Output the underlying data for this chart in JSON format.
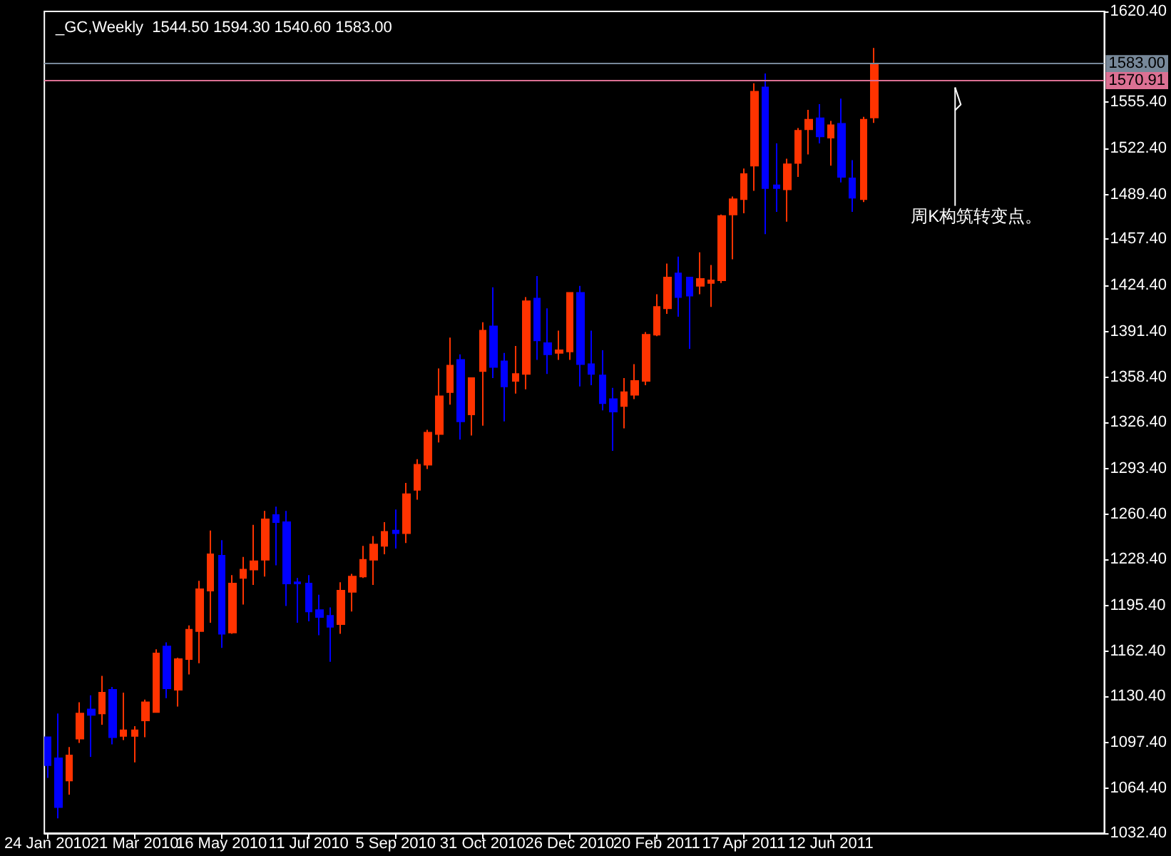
{
  "chart_data": {
    "type": "candlestick",
    "title": "_GC,Weekly  1544.50 1594.30 1540.60 1583.00",
    "annotations": [
      {
        "text": "周K构筑转变点。",
        "x": "2011-08-31",
        "y": 1566
      }
    ],
    "x": [
      "2010-01-24",
      "2010-01-31",
      "2010-02-07",
      "2010-02-14",
      "2010-02-21",
      "2010-02-28",
      "2010-03-07",
      "2010-03-14",
      "2010-03-21",
      "2010-03-28",
      "2010-04-04",
      "2010-04-11",
      "2010-04-18",
      "2010-04-25",
      "2010-05-02",
      "2010-05-09",
      "2010-05-16",
      "2010-05-23",
      "2010-05-30",
      "2010-06-06",
      "2010-06-13",
      "2010-06-20",
      "2010-06-27",
      "2010-07-04",
      "2010-07-11",
      "2010-07-18",
      "2010-07-25",
      "2010-08-01",
      "2010-08-08",
      "2010-08-15",
      "2010-08-22",
      "2010-08-29",
      "2010-09-05",
      "2010-09-12",
      "2010-09-19",
      "2010-09-26",
      "2010-10-03",
      "2010-10-10",
      "2010-10-17",
      "2010-10-24",
      "2010-10-31",
      "2010-11-07",
      "2010-11-14",
      "2010-11-21",
      "2010-11-28",
      "2010-12-05",
      "2010-12-12",
      "2010-12-19",
      "2010-12-26",
      "2011-01-02",
      "2011-01-09",
      "2011-01-16",
      "2011-01-23",
      "2011-01-30",
      "2011-02-06",
      "2011-02-13",
      "2011-02-20",
      "2011-02-27",
      "2011-03-06",
      "2011-03-13",
      "2011-03-20",
      "2011-03-27",
      "2011-04-03",
      "2011-04-10",
      "2011-04-17",
      "2011-04-24",
      "2011-05-01",
      "2011-05-08",
      "2011-05-15",
      "2011-05-22",
      "2011-05-29",
      "2011-06-05",
      "2011-06-12",
      "2011-06-19",
      "2011-06-26",
      "2011-07-03",
      "2011-07-10"
    ],
    "ohlc": [
      [
        1101,
        1101,
        1072,
        1081
      ],
      [
        1086,
        1118,
        1043,
        1051
      ],
      [
        1070,
        1094,
        1060,
        1088
      ],
      [
        1100,
        1126,
        1097,
        1118
      ],
      [
        1121,
        1131,
        1087,
        1117
      ],
      [
        1118,
        1145,
        1110,
        1133
      ],
      [
        1135,
        1137,
        1096,
        1101
      ],
      [
        1102,
        1133,
        1099,
        1106
      ],
      [
        1102,
        1109,
        1083,
        1106
      ],
      [
        1113,
        1128,
        1101,
        1126
      ],
      [
        1119,
        1164,
        1119,
        1161
      ],
      [
        1166,
        1169,
        1129,
        1136
      ],
      [
        1135,
        1158,
        1123,
        1157
      ],
      [
        1157,
        1181,
        1146,
        1178
      ],
      [
        1177,
        1213,
        1154,
        1207
      ],
      [
        1206,
        1249,
        1183,
        1232
      ],
      [
        1231,
        1242,
        1165,
        1175
      ],
      [
        1176,
        1217,
        1175,
        1211
      ],
      [
        1215,
        1230,
        1196,
        1221
      ],
      [
        1221,
        1253,
        1210,
        1227
      ],
      [
        1228,
        1263,
        1216,
        1257
      ],
      [
        1260,
        1266,
        1224,
        1255
      ],
      [
        1255,
        1263,
        1195,
        1211
      ],
      [
        1212,
        1215,
        1183,
        1211
      ],
      [
        1211,
        1217,
        1184,
        1191
      ],
      [
        1192,
        1203,
        1174,
        1187
      ],
      [
        1188,
        1194,
        1155,
        1180
      ],
      [
        1182,
        1212,
        1175,
        1206
      ],
      [
        1205,
        1218,
        1191,
        1216
      ],
      [
        1216,
        1238,
        1215,
        1228
      ],
      [
        1228,
        1245,
        1210,
        1239
      ],
      [
        1238,
        1255,
        1232,
        1248
      ],
      [
        1249,
        1264,
        1236,
        1247
      ],
      [
        1247,
        1283,
        1240,
        1275
      ],
      [
        1278,
        1300,
        1271,
        1296
      ],
      [
        1296,
        1321,
        1293,
        1319
      ],
      [
        1318,
        1365,
        1312,
        1345
      ],
      [
        1348,
        1387,
        1339,
        1367
      ],
      [
        1371,
        1375,
        1314,
        1327
      ],
      [
        1332,
        1358,
        1317,
        1358
      ],
      [
        1363,
        1398,
        1324,
        1392
      ],
      [
        1395,
        1423,
        1358,
        1366
      ],
      [
        1370,
        1376,
        1327,
        1352
      ],
      [
        1356,
        1381,
        1347,
        1361
      ],
      [
        1361,
        1416,
        1350,
        1413
      ],
      [
        1415,
        1431,
        1371,
        1385
      ],
      [
        1383,
        1408,
        1361,
        1375
      ],
      [
        1376,
        1392,
        1371,
        1378
      ],
      [
        1377,
        1419,
        1371,
        1419
      ],
      [
        1419,
        1424,
        1352,
        1368
      ],
      [
        1368,
        1392,
        1353,
        1361
      ],
      [
        1360,
        1378,
        1335,
        1340
      ],
      [
        1343,
        1351,
        1306,
        1334
      ],
      [
        1338,
        1358,
        1322,
        1348
      ],
      [
        1346,
        1368,
        1343,
        1356
      ],
      [
        1356,
        1391,
        1353,
        1389
      ],
      [
        1389,
        1418,
        1388,
        1409
      ],
      [
        1408,
        1440,
        1404,
        1430
      ],
      [
        1433,
        1445,
        1402,
        1416
      ],
      [
        1430,
        1430,
        1379,
        1417
      ],
      [
        1424,
        1448,
        1418,
        1429
      ],
      [
        1426,
        1439,
        1409,
        1428
      ],
      [
        1428,
        1475,
        1426,
        1474
      ],
      [
        1475,
        1488,
        1443,
        1486
      ],
      [
        1486,
        1508,
        1476,
        1504
      ],
      [
        1510,
        1569,
        1492,
        1563
      ],
      [
        1566,
        1576,
        1461,
        1494
      ],
      [
        1496,
        1526,
        1477,
        1494
      ],
      [
        1493,
        1515,
        1470,
        1511
      ],
      [
        1512,
        1537,
        1502,
        1535
      ],
      [
        1536,
        1550,
        1518,
        1543
      ],
      [
        1544,
        1554,
        1526,
        1531
      ],
      [
        1530,
        1542,
        1510,
        1539
      ],
      [
        1540,
        1558,
        1498,
        1502
      ],
      [
        1501,
        1514,
        1477,
        1487
      ],
      [
        1486,
        1545,
        1484,
        1543
      ],
      [
        1544.5,
        1594.3,
        1540.6,
        1583.0
      ]
    ],
    "colors": [
      "#0000ff",
      "#0000ff",
      "#ff3300",
      "#ff3300",
      "#0000ff",
      "#ff3300",
      "#0000ff",
      "#ff3300",
      "#ff3300",
      "#ff3300",
      "#ff3300",
      "#0000ff",
      "#ff3300",
      "#ff3300",
      "#ff3300",
      "#ff3300",
      "#0000ff",
      "#ff3300",
      "#ff3300",
      "#ff3300",
      "#ff3300",
      "#0000ff",
      "#0000ff",
      "#0000ff",
      "#0000ff",
      "#0000ff",
      "#0000ff",
      "#ff3300",
      "#ff3300",
      "#ff3300",
      "#ff3300",
      "#ff3300",
      "#0000ff",
      "#ff3300",
      "#ff3300",
      "#ff3300",
      "#ff3300",
      "#ff3300",
      "#0000ff",
      "#ff3300",
      "#ff3300",
      "#0000ff",
      "#0000ff",
      "#ff3300",
      "#ff3300",
      "#0000ff",
      "#0000ff",
      "#ff3300",
      "#ff3300",
      "#0000ff",
      "#0000ff",
      "#0000ff",
      "#0000ff",
      "#ff3300",
      "#ff3300",
      "#ff3300",
      "#ff3300",
      "#ff3300",
      "#0000ff",
      "#0000ff",
      "#ff3300",
      "#ff3300",
      "#ff3300",
      "#ff3300",
      "#ff3300",
      "#ff3300",
      "#0000ff",
      "#0000ff",
      "#ff3300",
      "#ff3300",
      "#ff3300",
      "#0000ff",
      "#ff3300",
      "#0000ff",
      "#0000ff",
      "#ff3300",
      "#ff3300"
    ],
    "xlim": [
      "2010-01-22",
      "2011-12-05"
    ],
    "xticks": [
      {
        "value": "2010-01-24",
        "label": "24 Jan 2010"
      },
      {
        "value": "2010-03-21",
        "label": "21 Mar 2010"
      },
      {
        "value": "2010-05-16",
        "label": "16 May 2010"
      },
      {
        "value": "2010-07-11",
        "label": "11 Jul 2010"
      },
      {
        "value": "2010-09-05",
        "label": "5 Sep 2010"
      },
      {
        "value": "2010-10-31",
        "label": "31 Oct 2010"
      },
      {
        "value": "2010-12-26",
        "label": "26 Dec 2010"
      },
      {
        "value": "2011-02-20",
        "label": "20 Feb 2011"
      },
      {
        "value": "2011-04-17",
        "label": "17 Apr 2011"
      },
      {
        "value": "2011-06-12",
        "label": "12 Jun 2011"
      }
    ],
    "ylim": [
      1032.4,
      1620.4
    ],
    "yticks": [
      {
        "value": 1032.4,
        "label": "1032.40"
      },
      {
        "value": 1064.4,
        "label": "1064.40"
      },
      {
        "value": 1097.4,
        "label": "1097.40"
      },
      {
        "value": 1130.4,
        "label": "1130.40"
      },
      {
        "value": 1162.4,
        "label": "1162.40"
      },
      {
        "value": 1195.4,
        "label": "1195.40"
      },
      {
        "value": 1228.4,
        "label": "1228.40"
      },
      {
        "value": 1260.4,
        "label": "1260.40"
      },
      {
        "value": 1293.4,
        "label": "1293.40"
      },
      {
        "value": 1326.4,
        "label": "1326.40"
      },
      {
        "value": 1358.4,
        "label": "1358.40"
      },
      {
        "value": 1391.4,
        "label": "1391.40"
      },
      {
        "value": 1424.4,
        "label": "1424.40"
      },
      {
        "value": 1457.4,
        "label": "1457.40"
      },
      {
        "value": 1489.4,
        "label": "1489.40"
      },
      {
        "value": 1522.4,
        "label": "1522.40"
      },
      {
        "value": 1555.4,
        "label": "1555.40"
      },
      {
        "value": 1620.4,
        "label": "1620.40"
      }
    ],
    "ref_lines": [
      {
        "axis": "y",
        "value": 1583.0,
        "label": "1583.00",
        "color": "#778899"
      },
      {
        "axis": "y",
        "value": 1570.91,
        "label": "1570.91",
        "color": "#db7093"
      }
    ]
  }
}
